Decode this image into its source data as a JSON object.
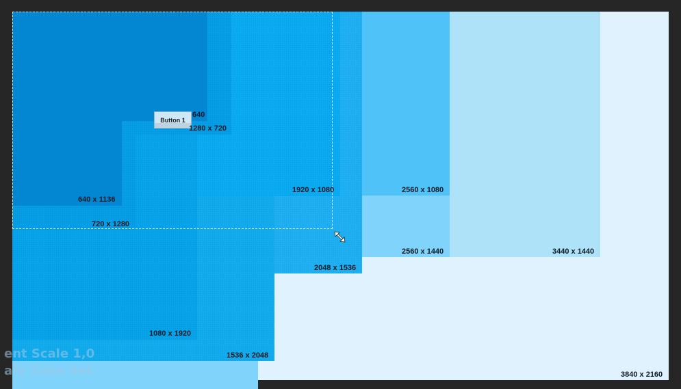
{
  "resolutions": {
    "r3840x2160": "3840 x 2160",
    "r3440x1440": "3440 x 1440",
    "r2560x1440": "2560 x 1440",
    "r2560x1080": "2560 x 1080",
    "r2048x1536": "2048 x 1536",
    "r1920x1080": "1920 x 1080",
    "r1536x2048": "1536 x 2048",
    "r1080x1920": "1080 x 1920",
    "r1280x720": "1280 x 720",
    "r720x1280": "720 x 1280",
    "r640x1136": "640 x 1136",
    "r640": "640"
  },
  "button": {
    "label": "Button 1"
  },
  "overlay": {
    "line1": "ent Scale 1,0",
    "line2": "afe Zone Set"
  },
  "colors": {
    "background": "#262626",
    "r3840x2160": "#dff2fd",
    "r3440x1440": "#aee2f9",
    "r2560x1440": "#80d3fa",
    "r2560x1080": "#4fc2f8",
    "r2048x1536": "#1fb0f3",
    "r1920x1080": "#0aabf2",
    "r1080x1920": "#07a3eb",
    "r720x1280": "#069fe7",
    "r640x1136": "#0387d3"
  }
}
